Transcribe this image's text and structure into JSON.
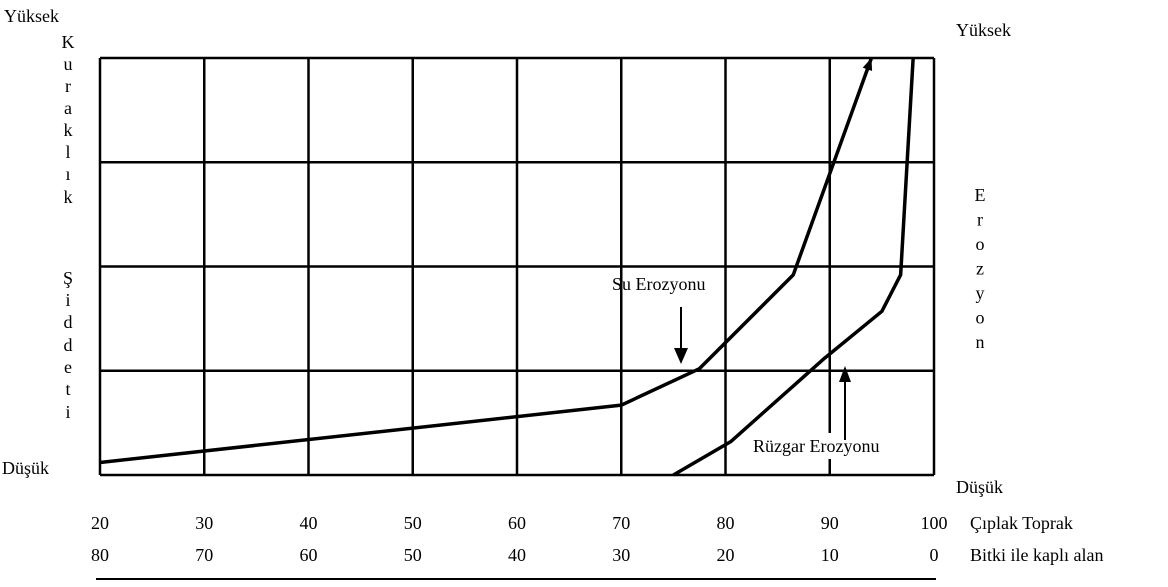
{
  "chart_data": {
    "type": "line",
    "left_axis": {
      "top_label": "Yüksek",
      "bottom_label": "Düşük",
      "title": "Kuraklık Şiddeti",
      "title_letters": [
        "K",
        "u",
        "r",
        "a",
        "k",
        "l",
        "ı",
        "k",
        "Ş",
        "i",
        "d",
        "d",
        "e",
        "t",
        "i"
      ]
    },
    "right_axis": {
      "top_label": "Yüksek",
      "bottom_label": "Düşük",
      "title": "Erozyon",
      "title_letters": [
        "E",
        "r",
        "o",
        "z",
        "y",
        "o",
        "n"
      ]
    },
    "x_axis_primary": {
      "label": "Çıplak Toprak",
      "ticks": [
        "20",
        "30",
        "40",
        "50",
        "60",
        "70",
        "80",
        "90",
        "100"
      ]
    },
    "x_axis_secondary": {
      "label": "Bitki ile kaplı alan",
      "ticks": [
        "80",
        "70",
        "60",
        "50",
        "40",
        "30",
        "20",
        "10",
        "0"
      ]
    },
    "xlim": [
      20,
      100
    ],
    "ylim": [
      0,
      4
    ],
    "grid": true,
    "series": [
      {
        "name": "Su Erozyonu",
        "x": [
          20,
          70,
          77.5,
          86.5,
          94
        ],
        "y": [
          0.12,
          0.67,
          1.02,
          1.92,
          4.0
        ],
        "arrowhead_at_end": true
      },
      {
        "name": "Rüzgar Erozyonu",
        "x": [
          75,
          80.5,
          89.5,
          95,
          96.8,
          98
        ],
        "y": [
          0,
          0.32,
          1.12,
          1.57,
          1.92,
          4.0
        ],
        "arrowhead_at_end": false
      }
    ],
    "annotations": [
      {
        "text": "Su Erozyonu",
        "points_to": "Su Erozyonu",
        "arrow": "down"
      },
      {
        "text": "Rüzgar Erozyonu",
        "points_to": "Rüzgar Erozyonu",
        "arrow": "up"
      }
    ]
  }
}
